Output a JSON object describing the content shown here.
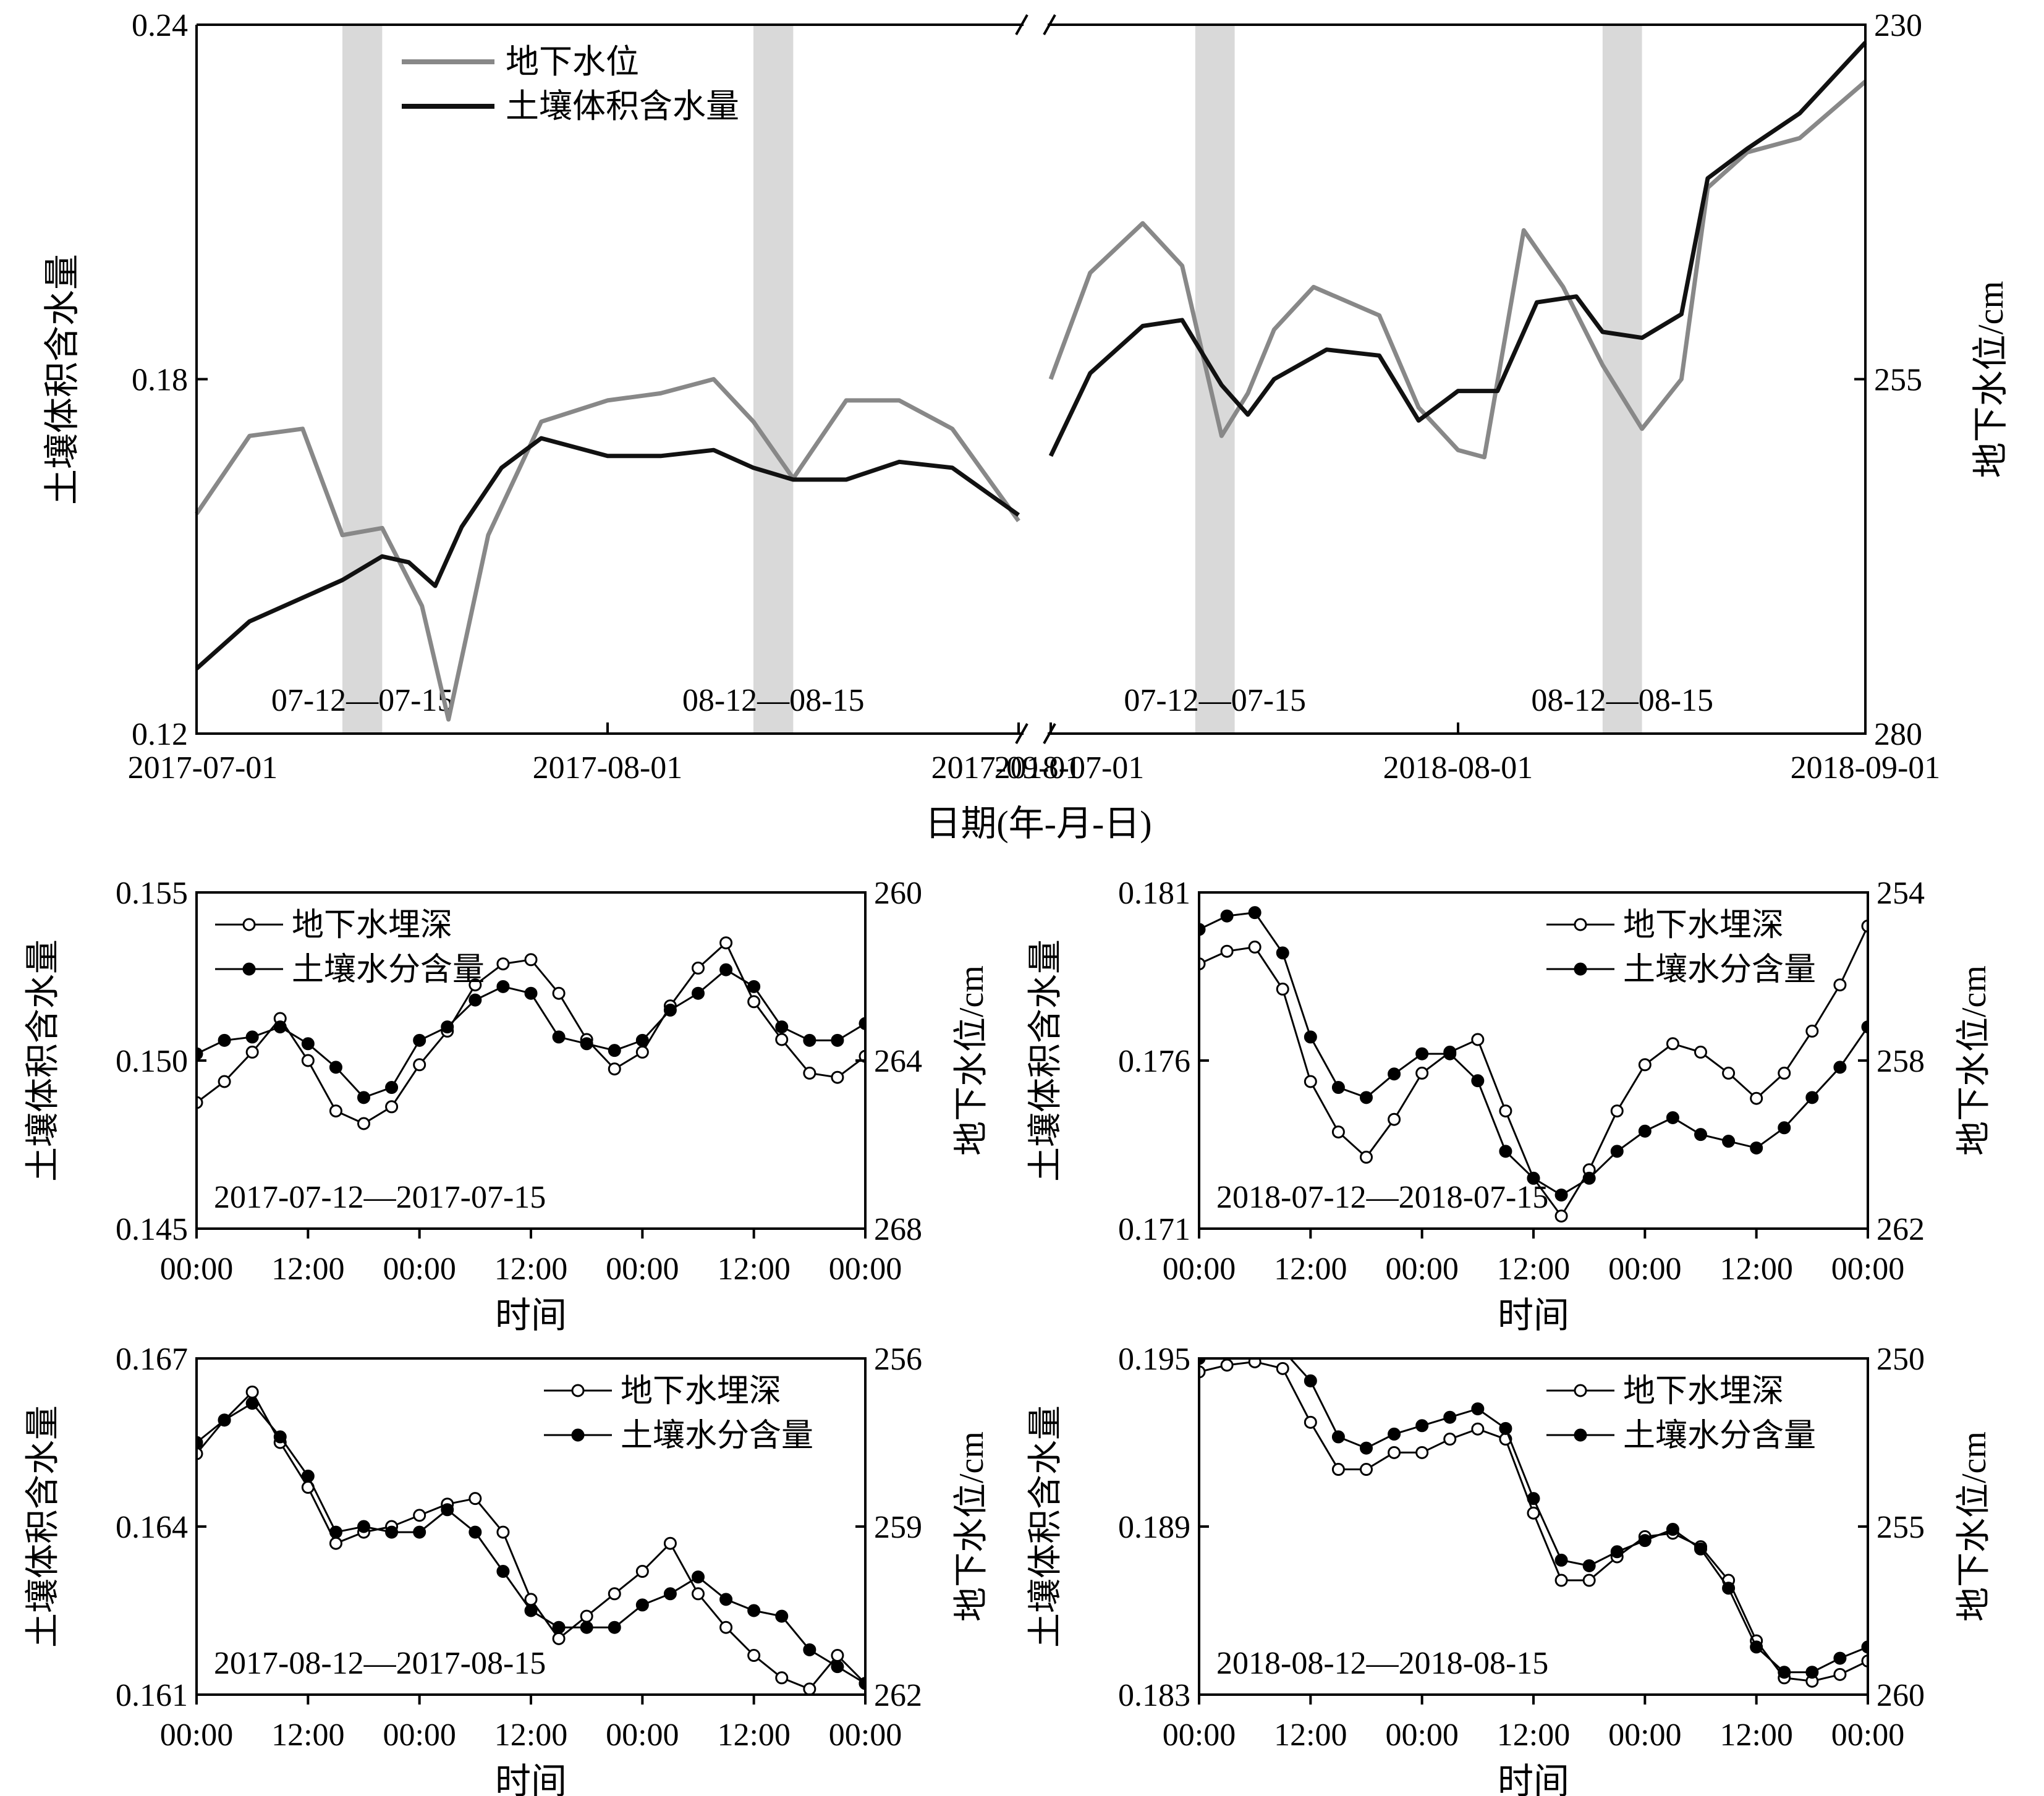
{
  "colors": {
    "gray": "#888888",
    "black": "#111111",
    "shade": "#d9d9d9"
  },
  "chart_data": [
    {
      "type": "line",
      "panel": "top",
      "xlabel": "日期(年-月-日)",
      "ylabel_left": "土壤体积含水量",
      "ylabel_right": "地下水位/cm",
      "y_left_ticks": [
        "0.24",
        "0.18",
        "0.12"
      ],
      "y_right_ticks": [
        "230",
        "255",
        "280"
      ],
      "ylim_left": [
        0.12,
        0.24
      ],
      "ylim_right": [
        280,
        230
      ],
      "x_ticks": [
        "2017-07-01",
        "2017-08-01",
        "2017-09-01",
        "2018-07-01",
        "2018-08-01",
        "2018-09-01"
      ],
      "axis_break": "between 2017-09-01 and 2018-07-01",
      "legend": [
        "地下水位",
        "土壤体积含水量"
      ],
      "legend_position": "top-left",
      "shaded_periods": [
        {
          "label": "07-12—07-15",
          "start": "2017-07-12",
          "end": "2017-07-15"
        },
        {
          "label": "08-12—08-15",
          "start": "2017-08-12",
          "end": "2017-08-15"
        },
        {
          "label": "07-12—07-15",
          "start": "2018-07-12",
          "end": "2018-07-15"
        },
        {
          "label": "08-12—08-15",
          "start": "2018-08-12",
          "end": "2018-08-15"
        }
      ],
      "series": [
        {
          "name": "地下水位",
          "segments": [
            {
              "x": [
                "2017-07-01",
                "2017-07-05",
                "2017-07-09",
                "2017-07-12",
                "2017-07-15",
                "2017-07-18",
                "2017-07-20",
                "2017-07-23",
                "2017-07-27",
                "2017-08-01",
                "2017-08-05",
                "2017-08-09",
                "2017-08-12",
                "2017-08-15",
                "2017-08-19",
                "2017-08-23",
                "2017-08-27",
                "2017-09-01"
              ],
              "y": [
                264.5,
                259,
                258.5,
                266,
                265.5,
                271,
                279,
                266,
                258,
                256.5,
                256,
                255,
                258,
                262,
                256.5,
                256.5,
                258.5,
                265
              ]
            },
            {
              "x": [
                "2018-07-01",
                "2018-07-04",
                "2018-07-08",
                "2018-07-11",
                "2018-07-14",
                "2018-07-16",
                "2018-07-18",
                "2018-07-21",
                "2018-07-26",
                "2018-07-29",
                "2018-08-01",
                "2018-08-03",
                "2018-08-06",
                "2018-08-09",
                "2018-08-12",
                "2018-08-15",
                "2018-08-18",
                "2018-08-20",
                "2018-08-23",
                "2018-08-27",
                "2018-09-01"
              ],
              "y": [
                255,
                247.5,
                244,
                247,
                259,
                256,
                251.5,
                248.5,
                250.5,
                257,
                260,
                260.5,
                244.5,
                248.5,
                254,
                258.5,
                255,
                241.5,
                239,
                238,
                234
              ]
            }
          ]
        },
        {
          "name": "土壤体积含水量",
          "segments": [
            {
              "x": [
                "2017-07-01",
                "2017-07-05",
                "2017-07-09",
                "2017-07-12",
                "2017-07-15",
                "2017-07-17",
                "2017-07-19",
                "2017-07-21",
                "2017-07-24",
                "2017-07-27",
                "2017-08-01",
                "2017-08-05",
                "2017-08-09",
                "2017-08-12",
                "2017-08-15",
                "2017-08-19",
                "2017-08-23",
                "2017-08-27",
                "2017-09-01"
              ],
              "y": [
                0.131,
                0.139,
                0.143,
                0.146,
                0.15,
                0.149,
                0.145,
                0.155,
                0.165,
                0.17,
                0.167,
                0.167,
                0.168,
                0.165,
                0.163,
                0.163,
                0.166,
                0.165,
                0.157
              ]
            },
            {
              "x": [
                "2018-07-01",
                "2018-07-04",
                "2018-07-08",
                "2018-07-11",
                "2018-07-14",
                "2018-07-16",
                "2018-07-18",
                "2018-07-22",
                "2018-07-26",
                "2018-07-29",
                "2018-08-01",
                "2018-08-04",
                "2018-08-07",
                "2018-08-10",
                "2018-08-12",
                "2018-08-15",
                "2018-08-18",
                "2018-08-20",
                "2018-08-23",
                "2018-08-27",
                "2018-09-01"
              ],
              "y": [
                0.167,
                0.181,
                0.189,
                0.19,
                0.179,
                0.174,
                0.18,
                0.185,
                0.184,
                0.173,
                0.178,
                0.178,
                0.193,
                0.194,
                0.188,
                0.187,
                0.191,
                0.214,
                0.219,
                0.225,
                0.237
              ]
            }
          ]
        }
      ]
    },
    {
      "type": "line",
      "panel": "2017-07-12—2017-07-15",
      "period_label": "2017-07-12—2017-07-15",
      "xlabel": "时间",
      "ylabel_left": "土壤体积含水量",
      "ylabel_right": "地下水位/cm",
      "x_ticks": [
        "00:00",
        "12:00",
        "00:00",
        "12:00",
        "00:00",
        "12:00",
        "00:00"
      ],
      "x_range_hours": [
        0,
        72
      ],
      "y_left_ticks": [
        "0.155",
        "0.150",
        "0.145"
      ],
      "y_right_ticks": [
        "260",
        "264",
        "268"
      ],
      "ylim_left": [
        0.145,
        0.155
      ],
      "ylim_right": [
        268,
        260
      ],
      "legend": [
        "地下水埋深",
        "土壤水分含量"
      ],
      "legend_position": "top-left",
      "series": [
        {
          "name": "地下水埋深",
          "marker": "open",
          "x": [
            0,
            3,
            6,
            9,
            12,
            15,
            18,
            21,
            24,
            27,
            30,
            33,
            36,
            39,
            42,
            45,
            48,
            51,
            54,
            57,
            60,
            63,
            66,
            69,
            72
          ],
          "y": [
            265,
            264.5,
            263.8,
            263,
            264,
            265.2,
            265.5,
            265.1,
            264.1,
            263.3,
            262.2,
            261.7,
            261.6,
            262.4,
            263.5,
            264.2,
            263.8,
            262.7,
            261.8,
            261.2,
            262.6,
            263.5,
            264.3,
            264.4,
            263.9
          ]
        },
        {
          "name": "土壤水分含量",
          "marker": "filled",
          "x": [
            0,
            3,
            6,
            9,
            12,
            15,
            18,
            21,
            24,
            27,
            30,
            33,
            36,
            39,
            42,
            45,
            48,
            51,
            54,
            57,
            60,
            63,
            66,
            69,
            72
          ],
          "y": [
            0.1502,
            0.1506,
            0.1507,
            0.151,
            0.1505,
            0.1498,
            0.1489,
            0.1492,
            0.1506,
            0.151,
            0.1518,
            0.1522,
            0.152,
            0.1507,
            0.1505,
            0.1503,
            0.1506,
            0.1515,
            0.152,
            0.1527,
            0.1522,
            0.151,
            0.1506,
            0.1506,
            0.1511
          ]
        }
      ]
    },
    {
      "type": "line",
      "panel": "2018-07-12—2018-07-15",
      "period_label": "2018-07-12—2018-07-15",
      "xlabel": "时间",
      "ylabel_left": "土壤体积含水量",
      "ylabel_right": "地下水位/cm",
      "x_ticks": [
        "00:00",
        "12:00",
        "00:00",
        "12:00",
        "00:00",
        "12:00",
        "00:00"
      ],
      "x_range_hours": [
        0,
        72
      ],
      "y_left_ticks": [
        "0.181",
        "0.176",
        "0.171"
      ],
      "y_right_ticks": [
        "254",
        "258",
        "262"
      ],
      "ylim_left": [
        0.171,
        0.181
      ],
      "ylim_right": [
        262,
        254
      ],
      "legend": [
        "地下水埋深",
        "土壤水分含量"
      ],
      "legend_position": "top-right",
      "series": [
        {
          "name": "地下水埋深",
          "marker": "open",
          "x": [
            0,
            3,
            6,
            9,
            12,
            15,
            18,
            21,
            24,
            27,
            30,
            33,
            36,
            39,
            42,
            45,
            48,
            51,
            54,
            57,
            60,
            63,
            66,
            69,
            72
          ],
          "y": [
            255.7,
            255.4,
            255.3,
            256.3,
            258.5,
            259.7,
            260.3,
            259.4,
            258.3,
            257.8,
            257.5,
            259.2,
            260.8,
            261.7,
            260.6,
            259.2,
            258.1,
            257.6,
            257.8,
            258.3,
            258.9,
            258.3,
            257.3,
            256.2,
            254.8
          ]
        },
        {
          "name": "土壤水分含量",
          "marker": "filled",
          "x": [
            0,
            3,
            6,
            9,
            12,
            15,
            18,
            21,
            24,
            27,
            30,
            33,
            36,
            39,
            42,
            45,
            48,
            51,
            54,
            57,
            60,
            63,
            66,
            69,
            72
          ],
          "y": [
            0.1799,
            0.1803,
            0.1804,
            0.1792,
            0.1767,
            0.1752,
            0.1749,
            0.1756,
            0.1762,
            0.1762,
            0.1754,
            0.1733,
            0.1725,
            0.172,
            0.1725,
            0.1733,
            0.1739,
            0.1743,
            0.1738,
            0.1736,
            0.1734,
            0.174,
            0.1749,
            0.1758,
            0.177
          ]
        }
      ]
    },
    {
      "type": "line",
      "panel": "2017-08-12—2017-08-15",
      "period_label": "2017-08-12—2017-08-15",
      "xlabel": "时间",
      "ylabel_left": "土壤体积含水量",
      "ylabel_right": "地下水位/cm",
      "x_ticks": [
        "00:00",
        "12:00",
        "00:00",
        "12:00",
        "00:00",
        "12:00",
        "00:00"
      ],
      "x_range_hours": [
        0,
        72
      ],
      "y_left_ticks": [
        "0.167",
        "0.164",
        "0.161"
      ],
      "y_right_ticks": [
        "256",
        "259",
        "262"
      ],
      "ylim_left": [
        0.161,
        0.167
      ],
      "ylim_right": [
        262,
        256
      ],
      "legend": [
        "地下水埋深",
        "土壤水分含量"
      ],
      "legend_position": "top-right",
      "series": [
        {
          "name": "地下水埋深",
          "marker": "open",
          "x": [
            0,
            3,
            6,
            9,
            12,
            15,
            18,
            21,
            24,
            27,
            30,
            33,
            36,
            39,
            42,
            45,
            48,
            51,
            54,
            57,
            60,
            63,
            66,
            69,
            72
          ],
          "y": [
            257.7,
            257.1,
            256.6,
            257.5,
            258.3,
            259.3,
            259.1,
            259,
            258.8,
            258.6,
            258.5,
            259.1,
            260.3,
            261,
            260.6,
            260.2,
            259.8,
            259.3,
            260.2,
            260.8,
            261.3,
            261.7,
            261.9,
            261.3,
            261.8
          ]
        },
        {
          "name": "土壤水分含量",
          "marker": "filled",
          "x": [
            0,
            3,
            6,
            9,
            12,
            15,
            18,
            21,
            24,
            27,
            30,
            33,
            36,
            39,
            42,
            45,
            48,
            51,
            54,
            57,
            60,
            63,
            66,
            69,
            72
          ],
          "y": [
            0.1655,
            0.1659,
            0.1662,
            0.1656,
            0.1649,
            0.1639,
            0.164,
            0.1639,
            0.1639,
            0.1643,
            0.1639,
            0.1632,
            0.1625,
            0.1622,
            0.1622,
            0.1622,
            0.1626,
            0.1628,
            0.1631,
            0.1627,
            0.1625,
            0.1624,
            0.1618,
            0.1615,
            0.1612
          ]
        }
      ]
    },
    {
      "type": "line",
      "panel": "2018-08-12—2018-08-15",
      "period_label": "2018-08-12—2018-08-15",
      "xlabel": "时间",
      "ylabel_left": "土壤体积含水量",
      "ylabel_right": "地下水位/cm",
      "x_ticks": [
        "00:00",
        "12:00",
        "00:00",
        "12:00",
        "00:00",
        "12:00",
        "00:00"
      ],
      "x_range_hours": [
        0,
        72
      ],
      "y_left_ticks": [
        "0.195",
        "0.189",
        "0.183"
      ],
      "y_right_ticks": [
        "250",
        "255",
        "260"
      ],
      "ylim_left": [
        0.183,
        0.195
      ],
      "ylim_right": [
        260,
        250
      ],
      "legend": [
        "地下水埋深",
        "土壤水分含量"
      ],
      "legend_position": "top-right",
      "series": [
        {
          "name": "地下水埋深",
          "marker": "open",
          "x": [
            0,
            3,
            6,
            9,
            12,
            15,
            18,
            21,
            24,
            27,
            30,
            33,
            36,
            39,
            42,
            45,
            48,
            51,
            54,
            57,
            60,
            63,
            66,
            69,
            72
          ],
          "y": [
            250.4,
            250.2,
            250.1,
            250.3,
            251.9,
            253.3,
            253.3,
            252.8,
            252.8,
            252.4,
            252.1,
            252.4,
            254.6,
            256.6,
            256.6,
            255.9,
            255.3,
            255.2,
            255.6,
            256.6,
            258.4,
            259.5,
            259.6,
            259.4,
            259
          ]
        },
        {
          "name": "土壤水分含量",
          "marker": "filled",
          "x": [
            0,
            3,
            6,
            9,
            12,
            15,
            18,
            21,
            24,
            27,
            30,
            33,
            36,
            39,
            42,
            45,
            48,
            51,
            54,
            57,
            60,
            63,
            66,
            69,
            72
          ],
          "y": [
            0.195,
            0.1952,
            0.1953,
            0.1953,
            0.1942,
            0.1922,
            0.1918,
            0.1923,
            0.1926,
            0.1929,
            0.1932,
            0.1925,
            0.19,
            0.1878,
            0.1876,
            0.1881,
            0.1885,
            0.1889,
            0.1882,
            0.1868,
            0.1847,
            0.1838,
            0.1838,
            0.1843,
            0.1847
          ]
        }
      ]
    }
  ]
}
